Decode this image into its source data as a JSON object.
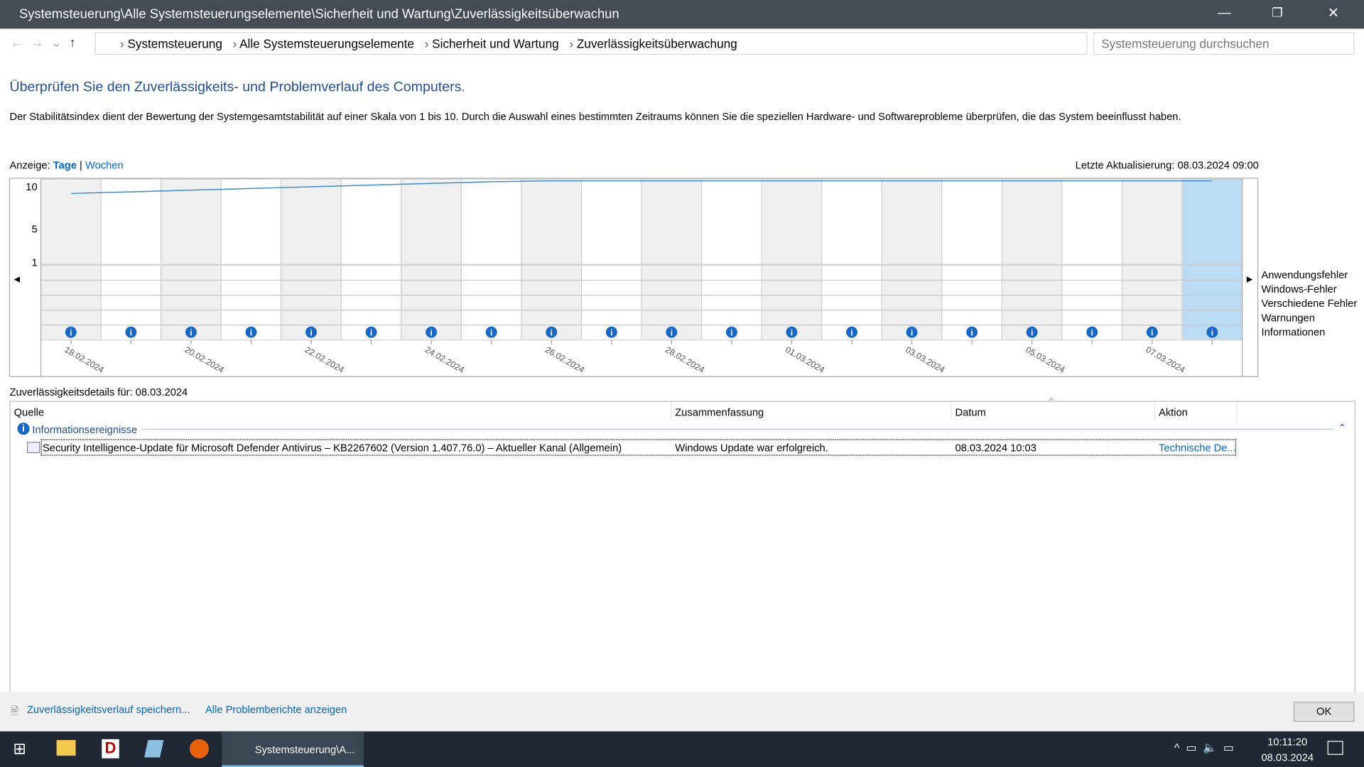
{
  "titlebar": {
    "title": "Systemsteuerung\\Alle Systemsteuerungselemente\\Sicherheit und Wartung\\Zuverlässigkeitsüberwachun"
  },
  "address": {
    "crumbs": [
      "Systemsteuerung",
      "Alle Systemsteuerungselemente",
      "Sicherheit und Wartung",
      "Zuverlässigkeitsüberwachung"
    ],
    "search_placeholder": "Systemsteuerung durchsuchen"
  },
  "heading": "Überprüfen Sie den Zuverlässigkeits- und Problemverlauf des Computers.",
  "description": "Der Stabilitätsindex dient der Bewertung der Systemgesamtstabilität auf einer Skala von 1 bis 10. Durch die Auswahl eines bestimmten Zeitraums können Sie die speziellen Hardware- und Softwareprobleme überprüfen, die das System beeinflusst haben.",
  "view": {
    "label": "Anzeige:",
    "options": [
      "Tage",
      "Wochen"
    ],
    "separator": "|"
  },
  "last_update": "Letzte Aktualisierung: 08.03.2024 09:00",
  "chart_data": {
    "type": "line",
    "categories": [
      "18.02.2024",
      null,
      "20.02.2024",
      null,
      "22.02.2024",
      null,
      "24.02.2024",
      null,
      "26.02.2024",
      null,
      "28.02.2024",
      null,
      "01.03.2024",
      null,
      "03.03.2024",
      null,
      "05.03.2024",
      null,
      "07.03.2024",
      null
    ],
    "values": [
      8.5,
      8.7,
      8.9,
      9.1,
      9.3,
      9.5,
      9.7,
      9.9,
      10,
      10,
      10,
      10,
      10,
      10,
      10,
      10,
      10,
      10,
      10,
      10
    ],
    "color": "#3a8ad6",
    "ylim": [
      1,
      10
    ],
    "yticks": [
      1,
      5,
      10
    ],
    "rows": [
      "Anwendungsfehler",
      "Windows-Fehler",
      "Verschiedene Fehler",
      "Warnungen",
      "Informationen"
    ]
  },
  "details": {
    "label": "Zuverlässigkeitsdetails für: 08.03.2024",
    "columns": [
      "Quelle",
      "Zusammenfassung",
      "Datum",
      "Aktion"
    ],
    "group": "Informationsereignisse",
    "rows": [
      [
        "Security Intelligence-Update für Microsoft Defender Antivirus – KB2267602 (Version 1.407.76.0) – Aktueller Kanal (Allgemein)",
        "Windows Update war erfolgreich.",
        "08.03.2024 10:03",
        "Technische De..."
      ]
    ]
  },
  "footer": {
    "links": [
      "Zuverlässigkeitsverlauf speichern...",
      "Alle Problemberichte anzeigen"
    ],
    "ok": "OK"
  },
  "taskbar": {
    "app": "Systemsteuerung\\A...",
    "time": "10:11:20",
    "date": "08.03.2024"
  }
}
